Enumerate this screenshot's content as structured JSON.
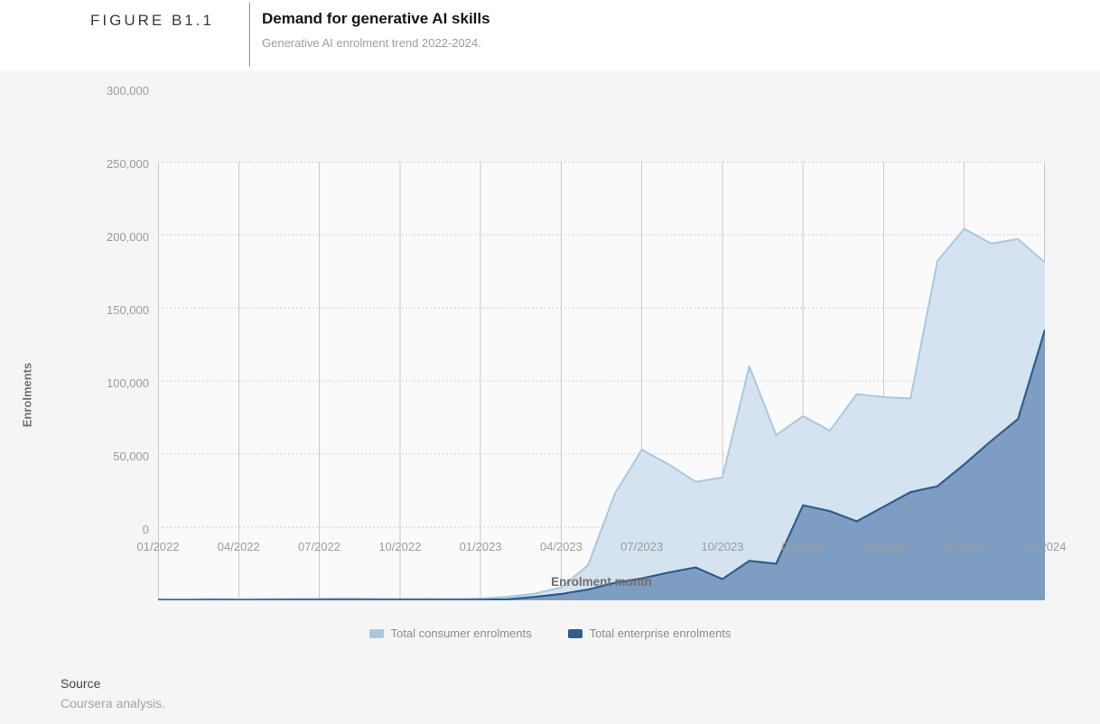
{
  "figure": {
    "label": "FIGURE B1.1",
    "title": "Demand for generative AI skills",
    "subtitle": "Generative AI enrolment trend 2022-2024."
  },
  "source": {
    "label": "Source",
    "text": "Coursera analysis."
  },
  "legend": {
    "items": [
      {
        "label": "Total consumer enrolments",
        "color": "#a6c9e2"
      },
      {
        "label": "Total enterprise enrolments",
        "color": "#2f5d8d"
      }
    ]
  },
  "chart_data": {
    "type": "area",
    "title": "Demand for generative AI skills",
    "xlabel": "Enrolment month",
    "ylabel": "Enrolments",
    "ylim": [
      0,
      300000
    ],
    "grid": {
      "vertical": "solid",
      "horizontal": "dotted"
    },
    "legend_position": "bottom",
    "plot_bg": "#fafafa",
    "grid_color_vertical": "#c9c9c9",
    "grid_color_horizontal": "#c2c2c2",
    "y_ticks": [
      0,
      50000,
      100000,
      150000,
      200000,
      250000,
      300000
    ],
    "y_tick_labels": [
      "0",
      "50,000",
      "100,000",
      "150,000",
      "200,000",
      "250,000",
      "300,000"
    ],
    "x_tick_labels": [
      "01/2022",
      "04/2022",
      "07/2022",
      "10/2022",
      "01/2023",
      "04/2023",
      "07/2023",
      "10/2023",
      "01/2024",
      "04/2024",
      "07/2024",
      "10/2024"
    ],
    "x_tick_month_indices": [
      0,
      3,
      6,
      9,
      12,
      15,
      18,
      21,
      24,
      27,
      30,
      33
    ],
    "months": [
      "01/2022",
      "02/2022",
      "03/2022",
      "04/2022",
      "05/2022",
      "06/2022",
      "07/2022",
      "08/2022",
      "09/2022",
      "10/2022",
      "11/2022",
      "12/2022",
      "01/2023",
      "02/2023",
      "03/2023",
      "04/2023",
      "05/2023",
      "06/2023",
      "07/2023",
      "08/2023",
      "09/2023",
      "10/2023",
      "11/2023",
      "12/2023",
      "01/2024",
      "02/2024",
      "03/2024",
      "04/2024",
      "05/2024",
      "06/2024",
      "07/2024",
      "08/2024",
      "09/2024",
      "10/2024"
    ],
    "series": [
      {
        "name": "Total consumer enrolments",
        "line_color": "#a6c9e2",
        "fill_color": "#d5e3f0",
        "line_width": 2,
        "values": [
          800,
          700,
          900,
          800,
          900,
          1000,
          1100,
          1400,
          1100,
          1000,
          1100,
          900,
          1200,
          2500,
          4500,
          8800,
          24000,
          73000,
          103000,
          93000,
          81000,
          84000,
          160000,
          113000,
          126000,
          116000,
          141000,
          139000,
          138000,
          232000,
          254000,
          244000,
          247000,
          231000
        ]
      },
      {
        "name": "Total enterprise enrolments",
        "line_color": "#2f5d8d",
        "fill_color": "#7e9dc2",
        "line_width": 2.2,
        "values": [
          200,
          200,
          250,
          200,
          250,
          300,
          300,
          350,
          300,
          300,
          350,
          300,
          400,
          700,
          2300,
          4300,
          7400,
          12000,
          15000,
          19000,
          22500,
          14500,
          27000,
          25000,
          65000,
          61000,
          54000,
          64000,
          74000,
          78000,
          93000,
          109000,
          124000,
          185000
        ]
      }
    ]
  }
}
